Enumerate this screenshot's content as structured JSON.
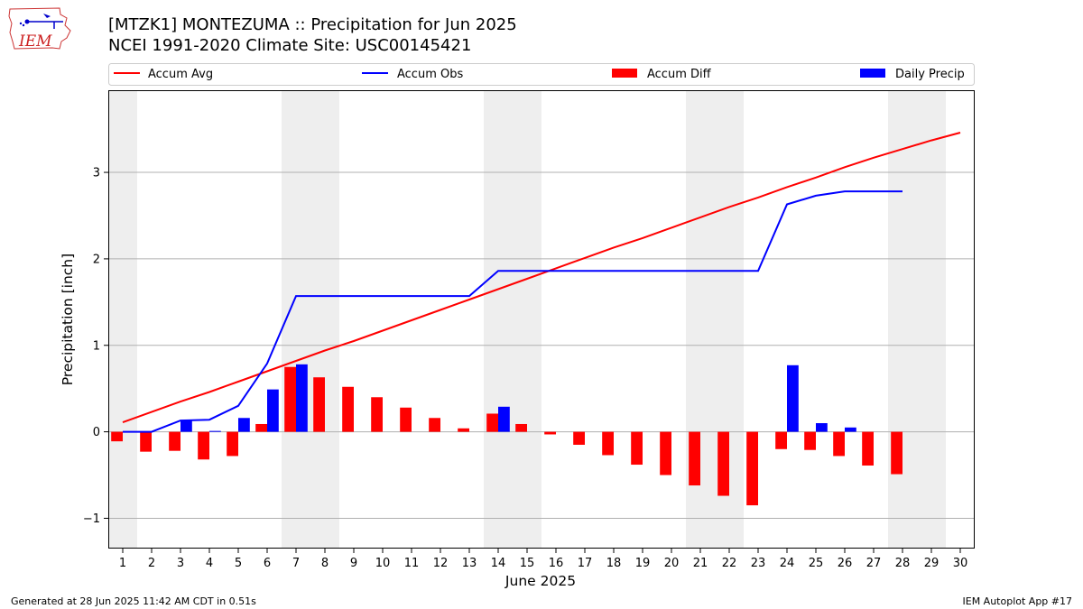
{
  "title_line1": "[MTZK1] MONTEZUMA :: Precipitation for Jun 2025",
  "title_line2": "NCEI 1991-2020 Climate Site: USC00145421",
  "logo_text": "IEM",
  "footer_left": "Generated at 28 Jun 2025 11:42 AM CDT in 0.51s",
  "footer_right": "IEM Autoplot App #17",
  "colors": {
    "accum_avg": "#ff0000",
    "accum_obs": "#0000ff",
    "accum_diff": "#ff0000",
    "daily_precip": "#0000ff",
    "weekend_shade": "#eeeeee",
    "grid": "#b0b0b0"
  },
  "chart_data": {
    "type": "bar",
    "xlabel": "June 2025",
    "ylabel": "Precipitation [inch]",
    "xlim": [
      0.5,
      30.5
    ],
    "ylim": [
      -1.35,
      3.95
    ],
    "x_ticks": [
      1,
      2,
      3,
      4,
      5,
      6,
      7,
      8,
      9,
      10,
      11,
      12,
      13,
      14,
      15,
      16,
      17,
      18,
      19,
      20,
      21,
      22,
      23,
      24,
      25,
      26,
      27,
      28,
      29,
      30
    ],
    "y_ticks": [
      -1,
      0,
      1,
      2,
      3
    ],
    "y_tick_labels": [
      "−1",
      "0",
      "1",
      "2",
      "3"
    ],
    "grid": "y",
    "legend_position": "top",
    "weekend_shading": [
      [
        0.5,
        1.5
      ],
      [
        6.5,
        8.5
      ],
      [
        13.5,
        15.5
      ],
      [
        20.5,
        22.5
      ],
      [
        27.5,
        29.5
      ]
    ],
    "days": [
      1,
      2,
      3,
      4,
      5,
      6,
      7,
      8,
      9,
      10,
      11,
      12,
      13,
      14,
      15,
      16,
      17,
      18,
      19,
      20,
      21,
      22,
      23,
      24,
      25,
      26,
      27,
      28,
      29,
      30
    ],
    "series": [
      {
        "name": "Accum Avg",
        "type": "line",
        "values": [
          0.11,
          0.23,
          0.35,
          0.46,
          0.58,
          0.7,
          0.82,
          0.94,
          1.05,
          1.17,
          1.29,
          1.41,
          1.53,
          1.65,
          1.77,
          1.89,
          2.01,
          2.13,
          2.24,
          2.36,
          2.48,
          2.6,
          2.71,
          2.83,
          2.94,
          3.06,
          3.17,
          3.27,
          3.37,
          3.46
        ]
      },
      {
        "name": "Accum Obs",
        "type": "line",
        "values": [
          0.0,
          0.0,
          0.13,
          0.14,
          0.3,
          0.79,
          1.57,
          1.57,
          1.57,
          1.57,
          1.57,
          1.57,
          1.57,
          1.86,
          1.86,
          1.86,
          1.86,
          1.86,
          1.86,
          1.86,
          1.86,
          1.86,
          1.86,
          2.63,
          2.73,
          2.78,
          2.78,
          2.78,
          null,
          null
        ]
      },
      {
        "name": "Accum Diff",
        "type": "bar",
        "values": [
          -0.11,
          -0.23,
          -0.22,
          -0.32,
          -0.28,
          0.09,
          0.75,
          0.63,
          0.52,
          0.4,
          0.28,
          0.16,
          0.04,
          0.21,
          0.09,
          -0.03,
          -0.15,
          -0.27,
          -0.38,
          -0.5,
          -0.62,
          -0.74,
          -0.85,
          -0.2,
          -0.21,
          -0.28,
          -0.39,
          -0.49,
          null,
          null
        ]
      },
      {
        "name": "Daily Precip",
        "type": "bar",
        "values": [
          0.0,
          0.0,
          0.13,
          0.01,
          0.16,
          0.49,
          0.78,
          0.0,
          0.0,
          0.0,
          0.0,
          0.0,
          0.0,
          0.29,
          0.0,
          0.0,
          0.0,
          0.0,
          0.0,
          0.0,
          0.0,
          0.0,
          0.0,
          0.77,
          0.1,
          0.05,
          0.0,
          0.0,
          null,
          null
        ]
      }
    ]
  }
}
